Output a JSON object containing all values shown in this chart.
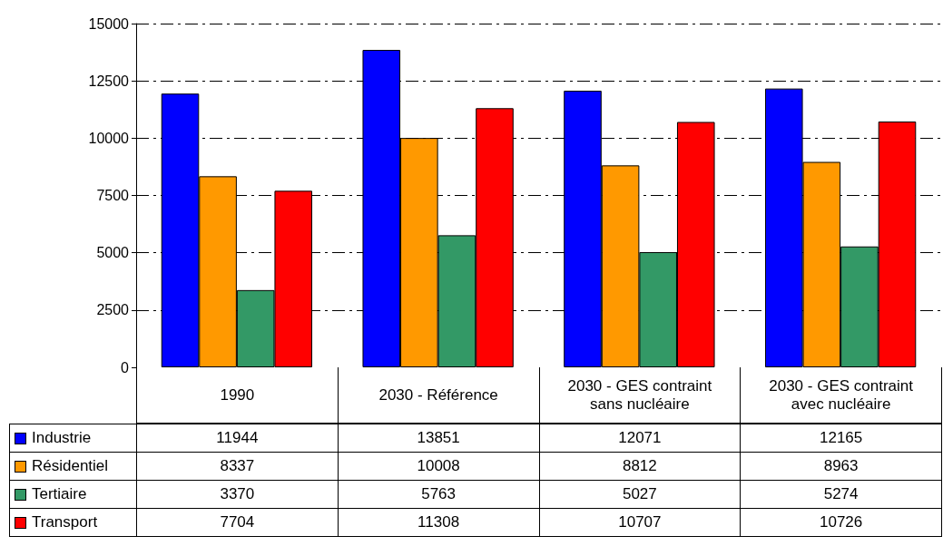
{
  "chart_data": {
    "type": "bar",
    "categories": [
      "1990",
      "2030 - Référence",
      "2030 - GES contraint sans nucléaire",
      "2030 - GES contraint avec nucléaire"
    ],
    "series": [
      {
        "name": "Industrie",
        "color": "#0000ff",
        "values": [
          11944,
          13851,
          12071,
          12165
        ]
      },
      {
        "name": "Résidentiel",
        "color": "#ff9900",
        "values": [
          8337,
          10008,
          8812,
          8963
        ]
      },
      {
        "name": "Tertiaire",
        "color": "#339966",
        "values": [
          3370,
          5763,
          5027,
          5274
        ]
      },
      {
        "name": "Transport",
        "color": "#ff0000",
        "values": [
          7704,
          11308,
          10707,
          10726
        ]
      }
    ],
    "ylim": [
      0,
      15000
    ],
    "yticks": [
      0,
      2500,
      5000,
      7500,
      10000,
      12500,
      15000
    ],
    "grid": "y",
    "legend": "bottom left",
    "data_labels": true
  }
}
